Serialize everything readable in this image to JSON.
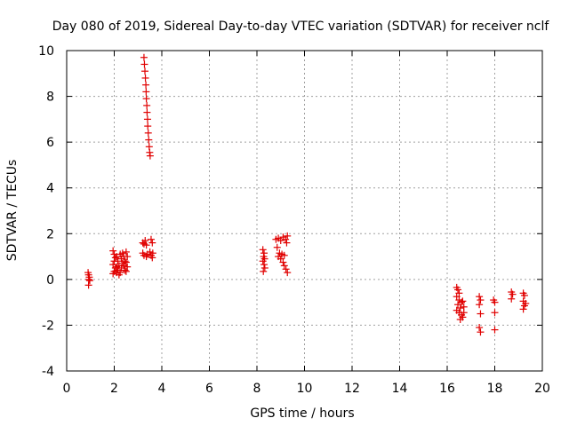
{
  "chart_data": {
    "type": "scatter",
    "title": "Day 080 of 2019, Sidereal Day-to-day VTEC variation (SDTVAR) for receiver nclf",
    "xlabel": "GPS time / hours",
    "ylabel": "SDTVAR / TECUs",
    "xlim": [
      0,
      20
    ],
    "ylim": [
      -4,
      10
    ],
    "xticks": [
      "0",
      "2",
      "4",
      "6",
      "8",
      "10",
      "12",
      "14",
      "16",
      "18",
      "20"
    ],
    "yticks": [
      "-4",
      "-2",
      "0",
      "2",
      "4",
      "6",
      "8",
      "10"
    ],
    "grid": true,
    "marker": "+",
    "color": "#e00000",
    "series": [
      {
        "name": "SDTVAR",
        "points": [
          [
            0.9,
            0.3
          ],
          [
            0.92,
            0.2
          ],
          [
            0.95,
            0.1
          ],
          [
            0.93,
            0.0
          ],
          [
            0.97,
            -0.05
          ],
          [
            0.92,
            -0.25
          ],
          [
            1.95,
            1.25
          ],
          [
            2.0,
            1.1
          ],
          [
            2.05,
            0.95
          ],
          [
            2.0,
            0.8
          ],
          [
            1.95,
            0.65
          ],
          [
            2.05,
            0.5
          ],
          [
            2.0,
            0.35
          ],
          [
            1.95,
            0.25
          ],
          [
            2.1,
            1.0
          ],
          [
            2.15,
            0.8
          ],
          [
            2.2,
            0.6
          ],
          [
            2.15,
            0.4
          ],
          [
            2.1,
            0.3
          ],
          [
            2.25,
            1.1
          ],
          [
            2.3,
            0.9
          ],
          [
            2.35,
            0.7
          ],
          [
            2.3,
            0.5
          ],
          [
            2.25,
            0.3
          ],
          [
            2.4,
            1.0
          ],
          [
            2.45,
            0.8
          ],
          [
            2.4,
            0.6
          ],
          [
            2.45,
            0.4
          ],
          [
            2.5,
            1.2
          ],
          [
            2.55,
            1.0
          ],
          [
            2.5,
            0.75
          ],
          [
            2.55,
            0.55
          ],
          [
            2.5,
            0.35
          ],
          [
            2.2,
            0.2
          ],
          [
            2.35,
            1.15
          ],
          [
            2.1,
            0.55
          ],
          [
            3.25,
            9.7
          ],
          [
            3.27,
            9.4
          ],
          [
            3.29,
            9.1
          ],
          [
            3.31,
            8.8
          ],
          [
            3.33,
            8.5
          ],
          [
            3.34,
            8.2
          ],
          [
            3.35,
            7.9
          ],
          [
            3.37,
            7.6
          ],
          [
            3.38,
            7.3
          ],
          [
            3.4,
            7.0
          ],
          [
            3.41,
            6.7
          ],
          [
            3.43,
            6.4
          ],
          [
            3.45,
            6.1
          ],
          [
            3.47,
            5.8
          ],
          [
            3.49,
            5.55
          ],
          [
            3.51,
            5.4
          ],
          [
            3.2,
            1.6
          ],
          [
            3.25,
            1.55
          ],
          [
            3.3,
            1.7
          ],
          [
            3.35,
            1.5
          ],
          [
            3.55,
            1.75
          ],
          [
            3.6,
            1.6
          ],
          [
            3.2,
            1.15
          ],
          [
            3.25,
            1.05
          ],
          [
            3.35,
            1.0
          ],
          [
            3.4,
            1.1
          ],
          [
            3.5,
            1.2
          ],
          [
            3.55,
            1.05
          ],
          [
            3.6,
            0.95
          ],
          [
            3.62,
            1.15
          ],
          [
            8.25,
            1.3
          ],
          [
            8.3,
            1.15
          ],
          [
            8.28,
            1.0
          ],
          [
            8.32,
            0.9
          ],
          [
            8.25,
            0.8
          ],
          [
            8.3,
            0.65
          ],
          [
            8.33,
            0.5
          ],
          [
            8.27,
            0.35
          ],
          [
            8.8,
            1.75
          ],
          [
            8.9,
            1.8
          ],
          [
            9.0,
            1.7
          ],
          [
            9.1,
            1.85
          ],
          [
            9.2,
            1.75
          ],
          [
            9.28,
            1.9
          ],
          [
            9.25,
            1.6
          ],
          [
            8.85,
            1.4
          ],
          [
            8.95,
            1.15
          ],
          [
            9.05,
            1.1
          ],
          [
            9.15,
            1.05
          ],
          [
            8.9,
            1.0
          ],
          [
            9.0,
            0.9
          ],
          [
            9.1,
            0.75
          ],
          [
            9.15,
            0.6
          ],
          [
            9.22,
            0.45
          ],
          [
            9.28,
            0.3
          ],
          [
            16.4,
            -0.35
          ],
          [
            16.45,
            -0.45
          ],
          [
            16.5,
            -0.6
          ],
          [
            16.4,
            -0.75
          ],
          [
            16.5,
            -0.9
          ],
          [
            16.6,
            -1.0
          ],
          [
            16.45,
            -1.1
          ],
          [
            16.55,
            -1.25
          ],
          [
            16.4,
            -1.35
          ],
          [
            16.5,
            -1.45
          ],
          [
            16.6,
            -1.55
          ],
          [
            16.65,
            -1.65
          ],
          [
            16.55,
            -1.75
          ],
          [
            16.7,
            -1.2
          ],
          [
            16.65,
            -0.95
          ],
          [
            16.7,
            -1.45
          ],
          [
            17.35,
            -0.75
          ],
          [
            17.4,
            -0.9
          ],
          [
            17.35,
            -1.1
          ],
          [
            17.4,
            -1.5
          ],
          [
            17.35,
            -2.1
          ],
          [
            17.4,
            -2.3
          ],
          [
            17.95,
            -0.9
          ],
          [
            18.0,
            -1.0
          ],
          [
            18.0,
            -1.45
          ],
          [
            18.0,
            -2.2
          ],
          [
            18.7,
            -0.55
          ],
          [
            18.75,
            -0.65
          ],
          [
            18.7,
            -0.85
          ],
          [
            19.2,
            -0.6
          ],
          [
            19.25,
            -0.7
          ],
          [
            19.2,
            -0.95
          ],
          [
            19.3,
            -1.05
          ],
          [
            19.25,
            -1.15
          ],
          [
            19.2,
            -1.3
          ]
        ]
      }
    ]
  }
}
